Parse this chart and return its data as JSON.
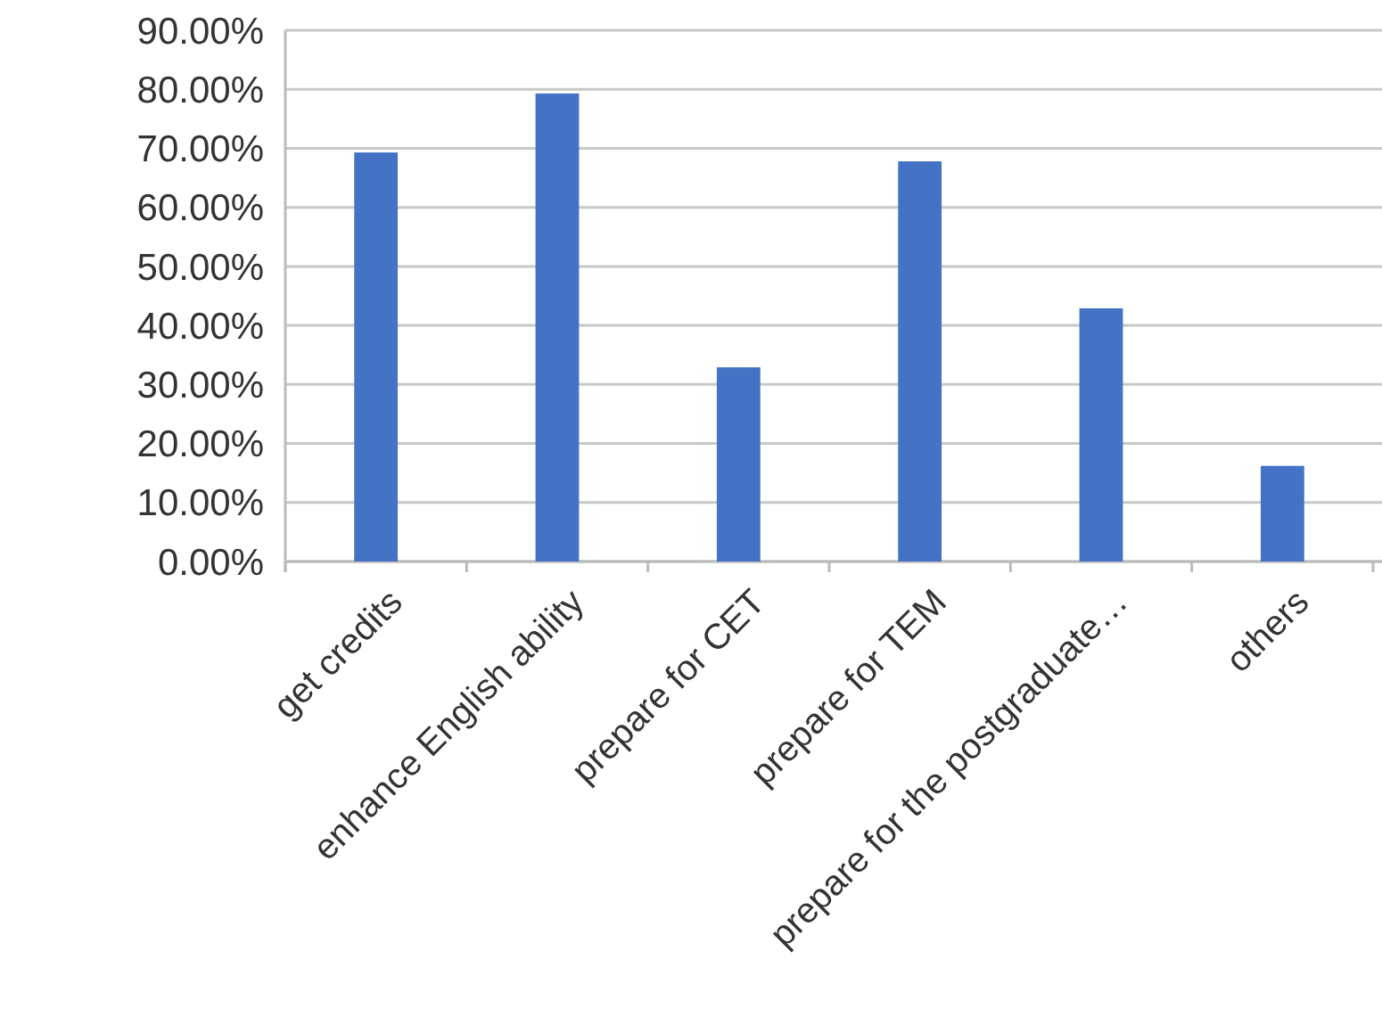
{
  "chart_data": {
    "type": "bar",
    "categories": [
      "get credits",
      "enhance English ability",
      "prepare for CET",
      "prepare for TEM",
      "prepare for the postgraduate…",
      "others"
    ],
    "values": [
      69.3,
      79.3,
      32.9,
      67.8,
      42.9,
      16.2
    ],
    "color": "#4472c4",
    "ylim": [
      0,
      90
    ],
    "yticks": [
      {
        "value": 0,
        "label": "0.00%"
      },
      {
        "value": 10,
        "label": "10.00%"
      },
      {
        "value": 20,
        "label": "20.00%"
      },
      {
        "value": 30,
        "label": "30.00%"
      },
      {
        "value": 40,
        "label": "40.00%"
      },
      {
        "value": 50,
        "label": "50.00%"
      },
      {
        "value": 60,
        "label": "60.00%"
      },
      {
        "value": 70,
        "label": "70.00%"
      },
      {
        "value": 80,
        "label": "80.00%"
      },
      {
        "value": 90,
        "label": "90.00%"
      }
    ],
    "grid": "y"
  }
}
